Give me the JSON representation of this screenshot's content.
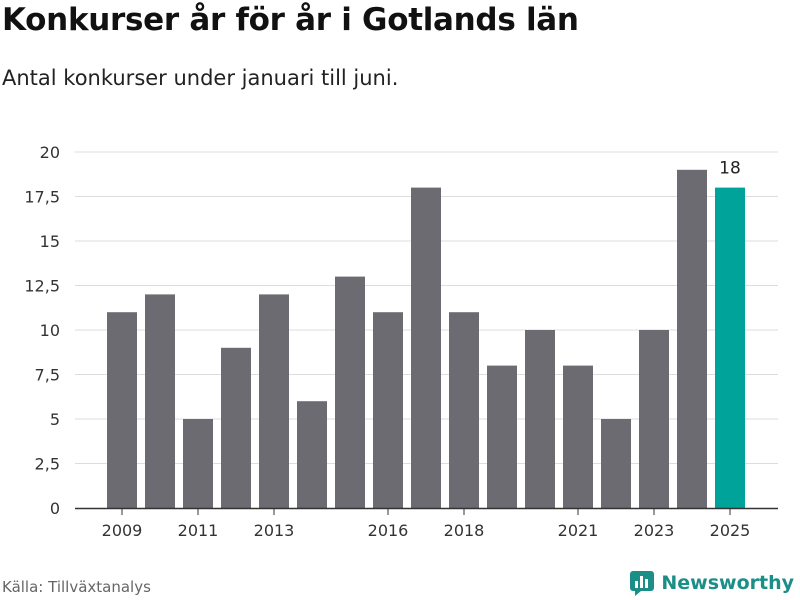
{
  "title": "Konkurser år för år i Gotlands län",
  "subtitle": "Antal konkurser under januari till juni.",
  "source": "Källa: Tillväxtanalys",
  "brand": "Newsworthy",
  "colors": {
    "bar": "#6c6b71",
    "highlight": "#00a39a",
    "grid": "#dddddd",
    "axis": "#333333",
    "brand": "#1b8e88"
  },
  "chart_data": {
    "type": "bar",
    "categories": [
      "2009",
      "2010",
      "2011",
      "2012",
      "2013",
      "2014",
      "2015",
      "2016",
      "2017",
      "2018",
      "2019",
      "2020",
      "2021",
      "2022",
      "2023",
      "2024",
      "2025"
    ],
    "values": [
      11,
      12,
      5,
      9,
      12,
      6,
      13,
      11,
      18,
      11,
      8,
      10,
      8,
      5,
      10,
      19,
      18
    ],
    "highlight_index": 16,
    "data_labels": [
      {
        "index": 16,
        "text": "18"
      }
    ],
    "x_tick_labels": [
      "2009",
      "2011",
      "2013",
      "2016",
      "2018",
      "2021",
      "2023",
      "2025"
    ],
    "y_ticks": [
      0,
      2.5,
      5,
      7.5,
      10,
      12.5,
      15,
      17.5,
      20
    ],
    "y_tick_labels": [
      "0",
      "2,5",
      "5",
      "7,5",
      "10",
      "12,5",
      "15",
      "17,5",
      "20"
    ],
    "ylim": [
      0,
      20
    ],
    "grid": true,
    "legend": "none"
  }
}
